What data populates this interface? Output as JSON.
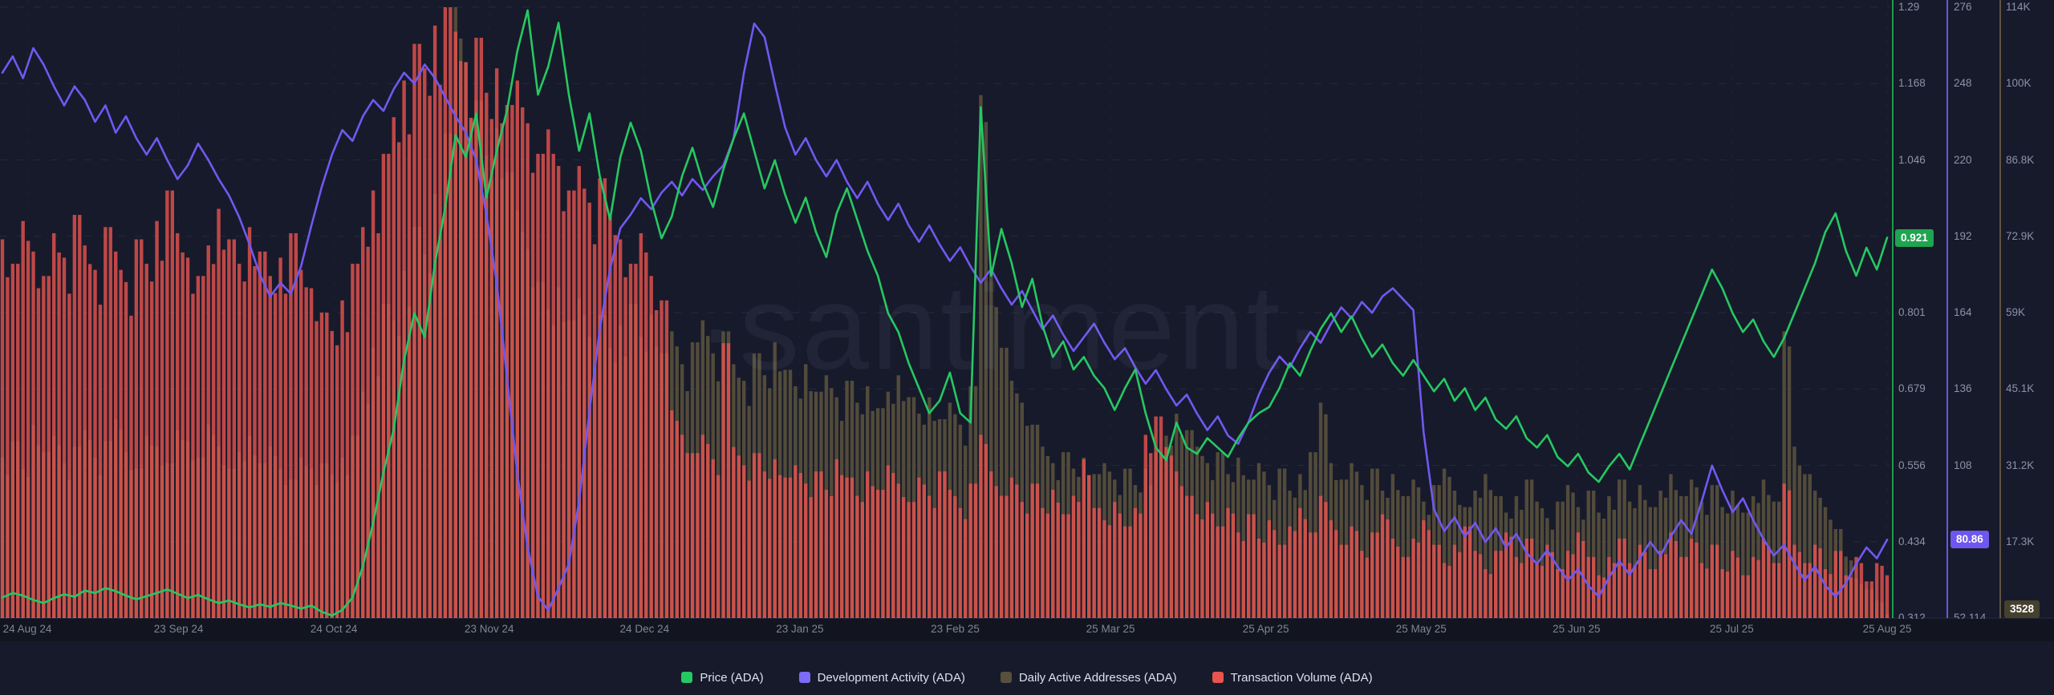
{
  "watermark": "·santiment·",
  "colors": {
    "background": "#171a2b",
    "axis_strip": "#12141f",
    "grid": "#aab4d2",
    "tick_text": "#8b93a7",
    "month_text": "#7e8598",
    "legend_text": "#dde1ea",
    "price_green": "#26c862",
    "dev_purple": "#7158f0",
    "daa_olive": "#57503c",
    "volume_red": "#e8544e",
    "badge_green_bg": "#1fa44f",
    "badge_purple_bg": "#6d57ee",
    "badge_olive_bg": "#46402f"
  },
  "x_axis": {
    "labels": [
      "24 Aug 24",
      "23 Sep 24",
      "24 Oct 24",
      "23 Nov 24",
      "24 Dec 24",
      "23 Jan 25",
      "23 Feb 25",
      "25 Mar 25",
      "25 Apr 25",
      "25 May 25",
      "25 Jun 25",
      "25 Jul 25",
      "25 Aug 25"
    ]
  },
  "chart_data": {
    "type": "mixed",
    "title": "",
    "x_description": "Daily data from 24 Aug 2024 to 25 Aug 2025; values sampled every 2 days (184 samples)",
    "x_start_label": "24 Aug 24",
    "x_end_label": "25 Aug 25",
    "grid": "dashed horizontal at each tick, dashed vertical at each month",
    "legend_position": "bottom-center",
    "series": [
      {
        "name": "Price (ADA)",
        "type": "line",
        "color": "#26c862",
        "axis_color": "#1d9d4b",
        "axis_side": "right-1",
        "axis_min": 0.312,
        "axis_max": 1.29,
        "ticks": [
          "1.29",
          "1.168",
          "1.046",
          null,
          "0.801",
          "0.679",
          "0.556",
          "0.434",
          "0.312"
        ],
        "badge_index": 3,
        "current": "0.921",
        "current_num": 0.921,
        "values": [
          0.345,
          0.352,
          0.348,
          0.341,
          0.336,
          0.344,
          0.35,
          0.346,
          0.356,
          0.352,
          0.36,
          0.355,
          0.348,
          0.342,
          0.347,
          0.352,
          0.358,
          0.351,
          0.344,
          0.349,
          0.342,
          0.336,
          0.34,
          0.334,
          0.329,
          0.334,
          0.33,
          0.336,
          0.332,
          0.327,
          0.332,
          0.322,
          0.316,
          0.325,
          0.345,
          0.395,
          0.465,
          0.545,
          0.615,
          0.725,
          0.8,
          0.762,
          0.88,
          0.97,
          1.085,
          1.05,
          1.12,
          0.985,
          1.06,
          1.125,
          1.22,
          1.285,
          1.15,
          1.195,
          1.265,
          1.15,
          1.06,
          1.12,
          1.02,
          0.95,
          1.05,
          1.105,
          1.06,
          0.98,
          0.92,
          0.955,
          1.02,
          1.065,
          1.01,
          0.97,
          1.03,
          1.08,
          1.12,
          1.06,
          1.0,
          1.045,
          0.99,
          0.945,
          0.985,
          0.93,
          0.89,
          0.96,
          1.0,
          0.95,
          0.9,
          0.86,
          0.8,
          0.77,
          0.72,
          0.68,
          0.64,
          0.66,
          0.705,
          0.64,
          0.625,
          1.13,
          0.86,
          0.935,
          0.88,
          0.81,
          0.855,
          0.78,
          0.73,
          0.755,
          0.71,
          0.73,
          0.7,
          0.68,
          0.645,
          0.68,
          0.71,
          0.64,
          0.585,
          0.565,
          0.625,
          0.585,
          0.575,
          0.6,
          0.585,
          0.57,
          0.6,
          0.625,
          0.64,
          0.65,
          0.68,
          0.72,
          0.7,
          0.74,
          0.775,
          0.8,
          0.77,
          0.795,
          0.76,
          0.73,
          0.75,
          0.72,
          0.7,
          0.725,
          0.7,
          0.675,
          0.695,
          0.66,
          0.68,
          0.645,
          0.665,
          0.63,
          0.615,
          0.635,
          0.6,
          0.585,
          0.605,
          0.57,
          0.555,
          0.575,
          0.545,
          0.53,
          0.555,
          0.575,
          0.55,
          0.59,
          0.63,
          0.67,
          0.71,
          0.75,
          0.79,
          0.83,
          0.87,
          0.84,
          0.8,
          0.77,
          0.79,
          0.755,
          0.73,
          0.76,
          0.8,
          0.84,
          0.88,
          0.93,
          0.96,
          0.9,
          0.86,
          0.905,
          0.87,
          0.921
        ]
      },
      {
        "name": "Development Activity (ADA)",
        "type": "line",
        "color": "#7158f0",
        "axis_color": "#6b54e6",
        "axis_side": "right-2",
        "axis_min": 52.114,
        "axis_max": 276,
        "ticks": [
          "276",
          "248",
          "220",
          "192",
          "164",
          "136",
          "108",
          null,
          "52.114"
        ],
        "badge_index": 7,
        "current": "80.86",
        "current_num": 80.86,
        "values": [
          252,
          258,
          250,
          261,
          255,
          247,
          240,
          247,
          242,
          234,
          240,
          230,
          236,
          228,
          222,
          228,
          220,
          213,
          218,
          226,
          220,
          213,
          207,
          199,
          189,
          178,
          170,
          175,
          171,
          181,
          196,
          210,
          222,
          231,
          227,
          236,
          242,
          238,
          246,
          252,
          248,
          255,
          250,
          243,
          236,
          230,
          220,
          200,
          175,
          140,
          105,
          78,
          60,
          55,
          63,
          72,
          95,
          128,
          158,
          180,
          195,
          200,
          206,
          202,
          208,
          212,
          207,
          213,
          209,
          214,
          218,
          228,
          252,
          270,
          265,
          248,
          232,
          222,
          228,
          220,
          214,
          220,
          212,
          206,
          212,
          204,
          198,
          204,
          196,
          190,
          196,
          189,
          183,
          188,
          181,
          175,
          180,
          173,
          167,
          172,
          165,
          158,
          163,
          156,
          150,
          155,
          160,
          153,
          147,
          151,
          144,
          138,
          143,
          136,
          130,
          134,
          127,
          121,
          126,
          119,
          116,
          124,
          134,
          142,
          148,
          144,
          151,
          157,
          153,
          160,
          166,
          162,
          168,
          164,
          170,
          173,
          169,
          165,
          120,
          92,
          84,
          89,
          82,
          87,
          80,
          85,
          78,
          83,
          76,
          72,
          77,
          71,
          66,
          70,
          64,
          60,
          67,
          73,
          68,
          74,
          80,
          75,
          82,
          88,
          83,
          95,
          108,
          99,
          91,
          96,
          88,
          81,
          75,
          79,
          72,
          66,
          71,
          64,
          60,
          65,
          72,
          78,
          74,
          80.86
        ]
      },
      {
        "name": "Daily Active Addresses (ADA)",
        "type": "bar",
        "color": "#57503c",
        "axis_color": "#5c5342",
        "axis_side": "right-3",
        "axis_min_k": 2.8,
        "axis_max_k": 114,
        "ticks": [
          "114K",
          "100K",
          "86.8K",
          "72.9K",
          "59K",
          "45.1K",
          "31.2K",
          "17.3K",
          null
        ],
        "badge_index": 8,
        "current": "3528",
        "current_num_k": 3.528,
        "values_k": [
          32,
          35,
          30,
          38,
          33,
          36,
          31,
          34,
          37,
          32,
          35,
          39,
          33,
          30,
          36,
          34,
          31,
          37,
          35,
          32,
          38,
          34,
          30,
          33,
          36,
          31,
          34,
          30,
          28,
          32,
          30,
          31,
          29,
          32,
          36,
          44,
          52,
          60,
          57,
          66,
          74,
          69,
          80,
          91,
          114,
          104,
          97,
          87,
          92,
          84,
          77,
          70,
          64,
          59,
          63,
          57,
          61,
          54,
          58,
          52,
          56,
          60,
          54,
          58,
          51,
          55,
          49,
          53,
          57,
          51,
          55,
          49,
          46,
          51,
          47,
          53,
          48,
          45,
          49,
          44,
          47,
          43,
          46,
          42,
          45,
          41,
          44,
          47,
          43,
          40,
          43,
          39,
          42,
          38,
          45,
          98,
          66,
          52,
          46,
          42,
          38,
          34,
          31,
          33,
          30,
          32,
          29,
          31,
          28,
          30,
          27,
          30,
          33,
          36,
          40,
          37,
          34,
          31,
          33,
          29,
          32,
          28,
          31,
          27,
          30,
          26,
          29,
          33,
          42,
          31,
          28,
          31,
          27,
          30,
          26,
          29,
          25,
          28,
          24,
          27,
          30,
          26,
          23,
          26,
          29,
          25,
          22,
          25,
          28,
          24,
          21,
          24,
          27,
          23,
          26,
          22,
          25,
          28,
          24,
          27,
          23,
          26,
          29,
          25,
          28,
          24,
          27,
          23,
          26,
          22,
          25,
          28,
          24,
          55,
          34,
          29,
          26,
          23,
          19,
          14,
          10,
          8,
          6,
          3.5
        ]
      },
      {
        "name": "Transaction Volume (ADA)",
        "type": "bar",
        "color": "#e8544e",
        "axis_side": "hidden",
        "scale": "relative percent of plot height",
        "values_rel": [
          62,
          58,
          65,
          60,
          56,
          63,
          59,
          66,
          61,
          57,
          64,
          60,
          55,
          62,
          58,
          65,
          70,
          63,
          59,
          56,
          61,
          67,
          62,
          58,
          64,
          60,
          56,
          59,
          63,
          57,
          54,
          50,
          47,
          52,
          58,
          64,
          70,
          76,
          82,
          88,
          94,
          90,
          97,
          100,
          96,
          91,
          95,
          86,
          90,
          84,
          88,
          81,
          76,
          80,
          74,
          70,
          74,
          68,
          72,
          66,
          62,
          58,
          63,
          56,
          52,
          34,
          30,
          27,
          30,
          26,
          45,
          28,
          25,
          27,
          24,
          26,
          23,
          25,
          22,
          24,
          21,
          26,
          23,
          20,
          24,
          21,
          25,
          22,
          19,
          23,
          20,
          24,
          21,
          18,
          22,
          30,
          24,
          20,
          23,
          19,
          22,
          18,
          21,
          17,
          20,
          26,
          18,
          16,
          19,
          15,
          18,
          30,
          33,
          28,
          24,
          20,
          17,
          19,
          15,
          18,
          14,
          17,
          13,
          16,
          12,
          15,
          18,
          14,
          20,
          16,
          12,
          15,
          11,
          14,
          17,
          13,
          10,
          13,
          16,
          12,
          9,
          12,
          15,
          11,
          8,
          11,
          14,
          10,
          13,
          9,
          12,
          8,
          11,
          14,
          10,
          7,
          10,
          13,
          9,
          12,
          8,
          11,
          14,
          10,
          13,
          9,
          12,
          8,
          11,
          7,
          10,
          13,
          9,
          22,
          12,
          9,
          12,
          8,
          11,
          7,
          10,
          6,
          9,
          7
        ]
      }
    ]
  }
}
